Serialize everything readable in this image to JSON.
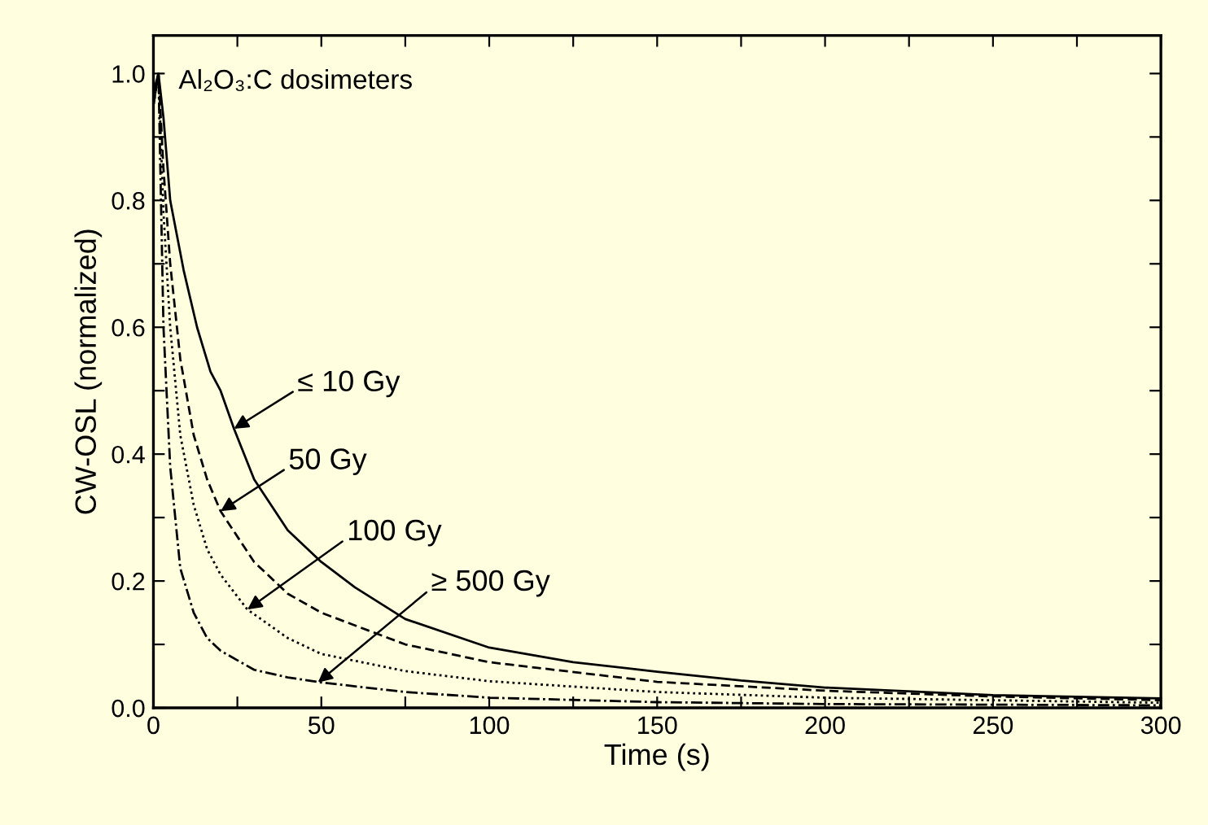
{
  "chart_data": {
    "type": "line",
    "xlabel": "Time (s)",
    "ylabel": "CW-OSL (normalized)",
    "xlim": [
      0,
      300
    ],
    "ylim": [
      0,
      1.06
    ],
    "xticks": [
      0,
      {
        "value": 25,
        "label": null
      },
      50,
      {
        "value": 75,
        "label": null
      },
      100,
      {
        "value": 125,
        "label": null
      },
      150,
      {
        "value": 175,
        "label": null
      },
      200,
      {
        "value": 225,
        "label": null
      },
      250,
      {
        "value": 275,
        "label": null
      },
      300
    ],
    "yticks": [
      {
        "value": 0,
        "label": "0.0"
      },
      {
        "value": 0.1,
        "label": null
      },
      0.2,
      {
        "value": 0.3,
        "label": null
      },
      0.4,
      {
        "value": 0.5,
        "label": null
      },
      0.6,
      {
        "value": 0.7,
        "label": null
      },
      0.8,
      {
        "value": 0.9,
        "label": null
      },
      {
        "value": 1.0,
        "label": "1.0"
      }
    ],
    "grid": false,
    "marker": "none",
    "series": [
      {
        "color": "#000000",
        "line_style": "solid",
        "x": [
          0,
          1.5,
          3,
          5,
          9,
          13,
          17,
          20,
          24,
          30,
          40,
          50,
          60,
          75,
          100,
          125,
          150,
          175,
          200,
          250,
          300
        ],
        "values": [
          0.97,
          1.0,
          0.93,
          0.8,
          0.69,
          0.6,
          0.53,
          0.5,
          0.44,
          0.36,
          0.28,
          0.23,
          0.19,
          0.14,
          0.095,
          0.072,
          0.057,
          0.043,
          0.032,
          0.02,
          0.015
        ]
      },
      {
        "color": "#000000",
        "line_style": "dashed",
        "x": [
          0,
          1.5,
          3,
          5,
          8,
          12,
          16,
          20,
          30,
          40,
          50,
          75,
          100,
          150,
          200,
          250,
          300
        ],
        "values": [
          0.95,
          1.0,
          0.85,
          0.7,
          0.55,
          0.43,
          0.36,
          0.31,
          0.23,
          0.18,
          0.15,
          0.1,
          0.072,
          0.041,
          0.027,
          0.018,
          0.012
        ]
      },
      {
        "color": "#000000",
        "line_style": "dotted",
        "x": [
          0,
          1.5,
          3,
          5,
          8,
          12,
          16,
          20,
          28,
          40,
          50,
          75,
          100,
          150,
          200,
          300
        ],
        "values": [
          0.95,
          1.0,
          0.78,
          0.6,
          0.43,
          0.32,
          0.25,
          0.21,
          0.155,
          0.11,
          0.085,
          0.058,
          0.042,
          0.025,
          0.016,
          0.008
        ]
      },
      {
        "color": "#000000",
        "line_style": "dashdot",
        "x": [
          0,
          1.5,
          3,
          5,
          8,
          12,
          16,
          20,
          30,
          40,
          50,
          75,
          100,
          150,
          200,
          300
        ],
        "values": [
          0.95,
          1.0,
          0.6,
          0.38,
          0.22,
          0.15,
          0.11,
          0.09,
          0.06,
          0.048,
          0.04,
          0.025,
          0.016,
          0.009,
          0.006,
          0.004
        ]
      }
    ],
    "annotations": [
      "Al₂O₃:C dosimeters",
      {
        "text": "≤ 10 Gy",
        "x": 24,
        "y": 0.44
      },
      {
        "text": "50 Gy",
        "x": 20,
        "y": 0.31
      },
      {
        "text": "100 Gy",
        "x": 28,
        "y": 0.155
      },
      {
        "text": "≥ 500 Gy",
        "x": 49,
        "y": 0.04
      }
    ]
  }
}
